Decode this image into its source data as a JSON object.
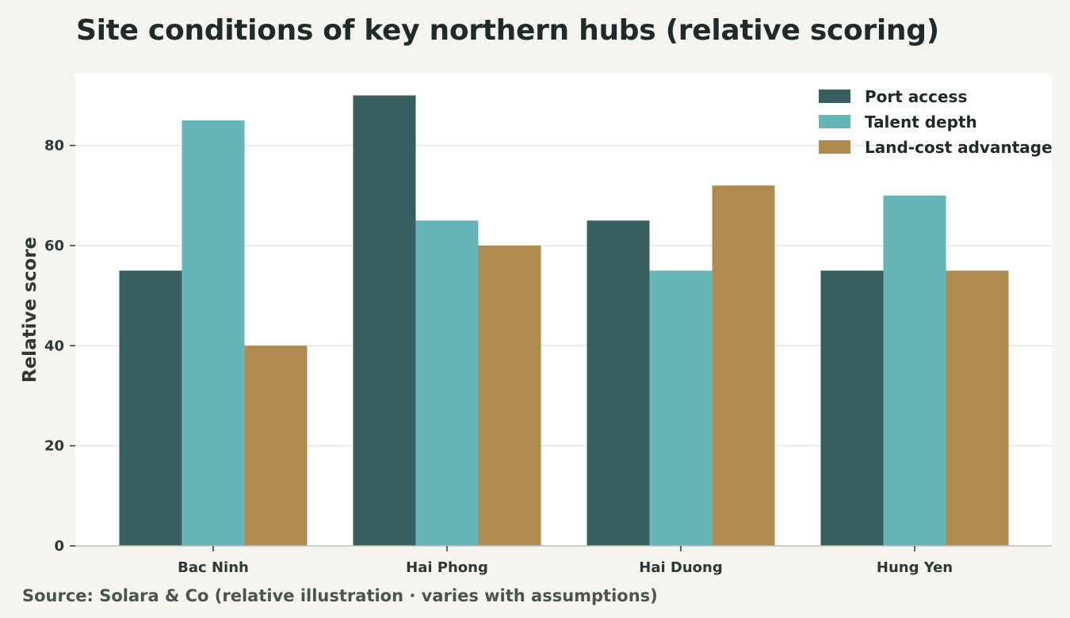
{
  "title": "Site conditions of key northern hubs (relative scoring)",
  "source": "Source: Solara & Co (relative illustration · varies with assumptions)",
  "chart_data": {
    "type": "bar",
    "title": "Site conditions of key northern hubs (relative scoring)",
    "xlabel": "",
    "ylabel": "Relative score",
    "categories": [
      "Bac Ninh",
      "Hai Phong",
      "Hai Duong",
      "Hung Yen"
    ],
    "series": [
      {
        "name": "Port access",
        "color": "#385f5f",
        "values": [
          55,
          90,
          65,
          55
        ]
      },
      {
        "name": "Talent depth",
        "color": "#66b5b9",
        "values": [
          85,
          65,
          55,
          70
        ]
      },
      {
        "name": "Land-cost advantage",
        "color": "#b08a4e",
        "values": [
          40,
          60,
          72,
          55
        ]
      }
    ],
    "yticks": [
      0,
      20,
      40,
      60,
      80
    ],
    "ylim": [
      0,
      94.5
    ],
    "grid": true,
    "legend": "top-right"
  }
}
